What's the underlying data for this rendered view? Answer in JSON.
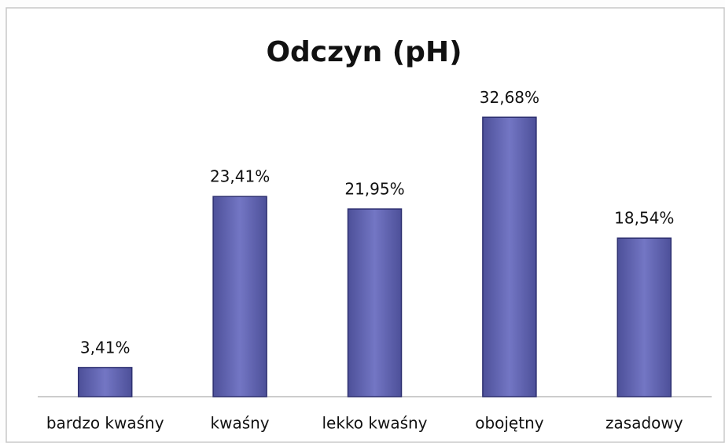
{
  "chart_data": {
    "type": "bar",
    "title": "Odczyn (pH)",
    "categories": [
      "bardzo kwaśny",
      "kwaśny",
      "lekko kwaśny",
      "obojętny",
      "zasadowy"
    ],
    "values": [
      3.41,
      23.41,
      21.95,
      32.68,
      18.54
    ],
    "value_labels": [
      "3,41%",
      "23,41%",
      "21,95%",
      "32,68%",
      "18,54%"
    ],
    "color": "#6a6db8",
    "ylim": [
      0,
      35
    ]
  }
}
